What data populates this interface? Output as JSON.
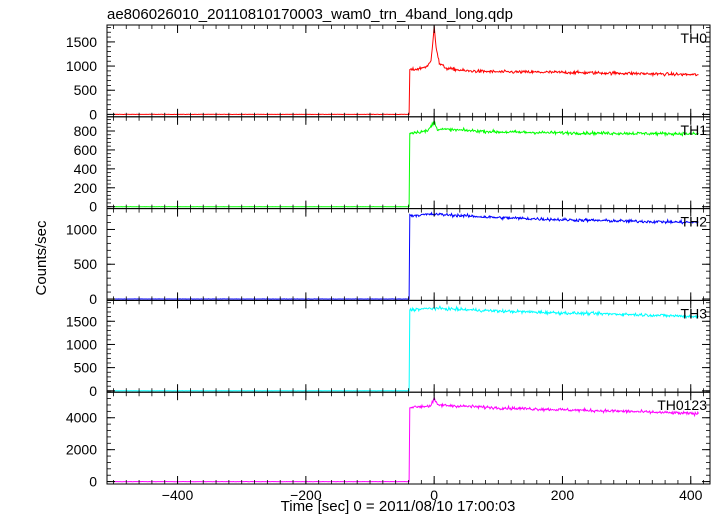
{
  "chart_data": {
    "type": "line",
    "title": "ae806026010_20110810170003_wam0_trn_4band_long.qdp",
    "xlabel": "Time [sec] 0 = 2011/08/10 17:00:03",
    "ylabel": "Counts/sec",
    "xlim": [
      -510,
      430
    ],
    "xticks": [
      -400,
      -200,
      0,
      200,
      400
    ],
    "step_time": -38,
    "data_end_time": 412,
    "panels": [
      {
        "name": "TH0",
        "color": "#ff0000",
        "ylim": [
          -50,
          1850
        ],
        "yticks": [
          0,
          500,
          1000,
          1500
        ],
        "series": [
          {
            "x": -500,
            "y": 0
          },
          {
            "x": -39,
            "y": 0
          },
          {
            "x": -38,
            "y": 920
          },
          {
            "x": -25,
            "y": 940
          },
          {
            "x": -10,
            "y": 1000
          },
          {
            "x": -5,
            "y": 1100
          },
          {
            "x": -2,
            "y": 1500
          },
          {
            "x": 0,
            "y": 1850
          },
          {
            "x": 3,
            "y": 1400
          },
          {
            "x": 8,
            "y": 1050
          },
          {
            "x": 20,
            "y": 950
          },
          {
            "x": 50,
            "y": 900
          },
          {
            "x": 100,
            "y": 880
          },
          {
            "x": 200,
            "y": 870
          },
          {
            "x": 300,
            "y": 850
          },
          {
            "x": 412,
            "y": 820
          }
        ]
      },
      {
        "name": "TH1",
        "color": "#00ff00",
        "ylim": [
          -20,
          950
        ],
        "yticks": [
          0,
          200,
          400,
          600,
          800
        ],
        "series": [
          {
            "x": -500,
            "y": 0
          },
          {
            "x": -39,
            "y": 0
          },
          {
            "x": -38,
            "y": 780
          },
          {
            "x": -10,
            "y": 800
          },
          {
            "x": 0,
            "y": 900
          },
          {
            "x": 5,
            "y": 820
          },
          {
            "x": 100,
            "y": 790
          },
          {
            "x": 200,
            "y": 780
          },
          {
            "x": 300,
            "y": 775
          },
          {
            "x": 412,
            "y": 770
          }
        ]
      },
      {
        "name": "TH2",
        "color": "#0000ff",
        "ylim": [
          -20,
          1300
        ],
        "yticks": [
          0,
          500,
          1000
        ],
        "series": [
          {
            "x": -500,
            "y": 0
          },
          {
            "x": -39,
            "y": 0
          },
          {
            "x": -38,
            "y": 1200
          },
          {
            "x": 0,
            "y": 1220
          },
          {
            "x": 100,
            "y": 1170
          },
          {
            "x": 200,
            "y": 1140
          },
          {
            "x": 300,
            "y": 1120
          },
          {
            "x": 412,
            "y": 1100
          }
        ]
      },
      {
        "name": "TH3",
        "color": "#00ffff",
        "ylim": [
          -30,
          1950
        ],
        "yticks": [
          0,
          500,
          1000,
          1500
        ],
        "series": [
          {
            "x": -500,
            "y": 0
          },
          {
            "x": -39,
            "y": 0
          },
          {
            "x": -38,
            "y": 1750
          },
          {
            "x": 0,
            "y": 1780
          },
          {
            "x": 100,
            "y": 1720
          },
          {
            "x": 200,
            "y": 1680
          },
          {
            "x": 300,
            "y": 1650
          },
          {
            "x": 412,
            "y": 1600
          }
        ]
      },
      {
        "name": "TH0123",
        "color": "#ff00ff",
        "ylim": [
          -150,
          5600
        ],
        "yticks": [
          0,
          2000,
          4000
        ],
        "series": [
          {
            "x": -500,
            "y": 0
          },
          {
            "x": -39,
            "y": 0
          },
          {
            "x": -38,
            "y": 4650
          },
          {
            "x": -5,
            "y": 4750
          },
          {
            "x": 0,
            "y": 5200
          },
          {
            "x": 5,
            "y": 4800
          },
          {
            "x": 100,
            "y": 4620
          },
          {
            "x": 200,
            "y": 4500
          },
          {
            "x": 300,
            "y": 4400
          },
          {
            "x": 412,
            "y": 4250
          }
        ]
      }
    ]
  }
}
